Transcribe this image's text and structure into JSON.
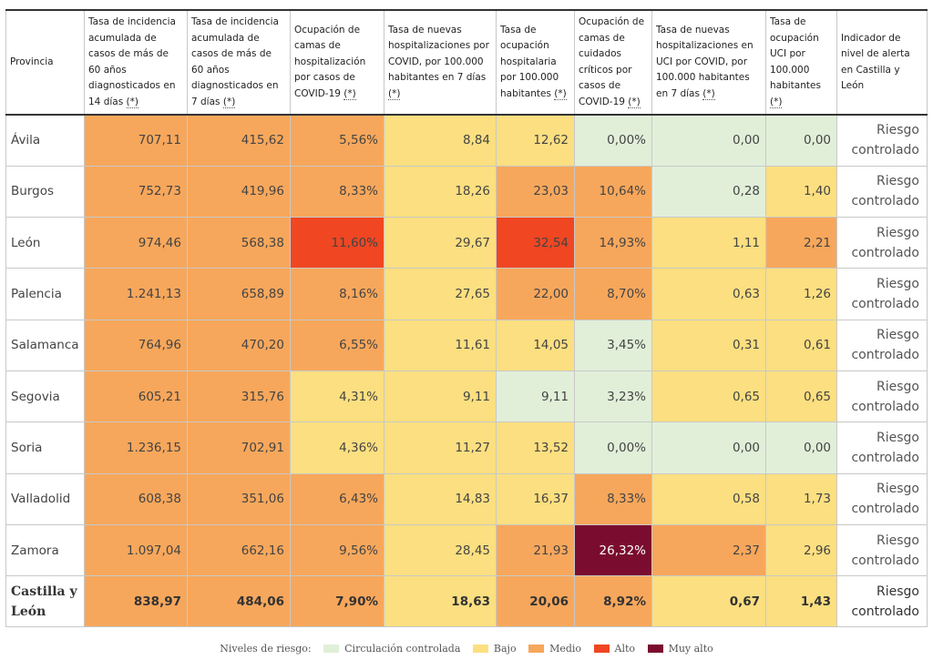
{
  "colors": {
    "green": "#e1efd9",
    "yellow": "#fcdf80",
    "orange": "#f7a75b",
    "red": "#f04622",
    "maroon": "#7a0d2f"
  },
  "headers": [
    {
      "text": "Provincia",
      "ast": ""
    },
    {
      "text": "Tasa de incidencia acumulada de casos de más de 60 años diagnosticados en 14 días ",
      "ast": "(*)"
    },
    {
      "text": "Tasa de incidencia acumulada de casos de más de 60 años diagnosticados en 7 días ",
      "ast": "(*)"
    },
    {
      "text": "Ocupación de camas de hospitalización por casos de COVID-19 ",
      "ast": "(*)"
    },
    {
      "text": "Tasa de nuevas hospitalizaciones por COVID, por 100.000 habitantes en 7 días ",
      "ast": "(*)"
    },
    {
      "text": "Tasa de ocupación hospitalaria por 100.000 habitantes ",
      "ast": "(*)"
    },
    {
      "text": "Ocupación de camas de cuidados críticos por casos de COVID-19 ",
      "ast": "(*)"
    },
    {
      "text": "Tasa de nuevas hospitalizaciones en UCI por COVID, por 100.000 habitantes en 7 días ",
      "ast": "(*)"
    },
    {
      "text": "Tasa de ocupación UCI por 100.000 habitantes ",
      "ast": "(*)"
    },
    {
      "text": "Indicador de nivel de alerta en Castilla y León",
      "ast": ""
    }
  ],
  "rows": [
    {
      "province": "Ávila",
      "values": [
        "707,11",
        "415,62",
        "5,56%",
        "8,84",
        "12,62",
        "0,00%",
        "0,00",
        "0,00"
      ],
      "levels": [
        "orange",
        "orange",
        "orange",
        "yellow",
        "yellow",
        "green",
        "green",
        "green"
      ],
      "risk_line1": "Riesgo",
      "risk_line2": "controlado"
    },
    {
      "province": "Burgos",
      "values": [
        "752,73",
        "419,96",
        "8,33%",
        "18,26",
        "23,03",
        "10,64%",
        "0,28",
        "1,40"
      ],
      "levels": [
        "orange",
        "orange",
        "orange",
        "yellow",
        "orange",
        "orange",
        "green",
        "yellow"
      ],
      "risk_line1": "Riesgo",
      "risk_line2": "controlado"
    },
    {
      "province": "León",
      "values": [
        "974,46",
        "568,38",
        "11,60%",
        "29,67",
        "32,54",
        "14,93%",
        "1,11",
        "2,21"
      ],
      "levels": [
        "orange",
        "orange",
        "red",
        "yellow",
        "red",
        "orange",
        "yellow",
        "orange"
      ],
      "risk_line1": "Riesgo",
      "risk_line2": "controlado"
    },
    {
      "province": "Palencia",
      "values": [
        "1.241,13",
        "658,89",
        "8,16%",
        "27,65",
        "22,00",
        "8,70%",
        "0,63",
        "1,26"
      ],
      "levels": [
        "orange",
        "orange",
        "orange",
        "yellow",
        "orange",
        "orange",
        "yellow",
        "yellow"
      ],
      "risk_line1": "Riesgo",
      "risk_line2": "controlado"
    },
    {
      "province": "Salamanca",
      "values": [
        "764,96",
        "470,20",
        "6,55%",
        "11,61",
        "14,05",
        "3,45%",
        "0,31",
        "0,61"
      ],
      "levels": [
        "orange",
        "orange",
        "orange",
        "yellow",
        "yellow",
        "green",
        "yellow",
        "yellow"
      ],
      "risk_line1": "Riesgo",
      "risk_line2": "controlado"
    },
    {
      "province": "Segovia",
      "values": [
        "605,21",
        "315,76",
        "4,31%",
        "9,11",
        "9,11",
        "3,23%",
        "0,65",
        "0,65"
      ],
      "levels": [
        "orange",
        "orange",
        "yellow",
        "yellow",
        "green",
        "green",
        "yellow",
        "yellow"
      ],
      "risk_line1": "Riesgo",
      "risk_line2": "controlado"
    },
    {
      "province": "Soria",
      "values": [
        "1.236,15",
        "702,91",
        "4,36%",
        "11,27",
        "13,52",
        "0,00%",
        "0,00",
        "0,00"
      ],
      "levels": [
        "orange",
        "orange",
        "yellow",
        "yellow",
        "yellow",
        "green",
        "green",
        "green"
      ],
      "risk_line1": "Riesgo",
      "risk_line2": "controlado"
    },
    {
      "province": "Valladolid",
      "values": [
        "608,38",
        "351,06",
        "6,43%",
        "14,83",
        "16,37",
        "8,33%",
        "0,58",
        "1,73"
      ],
      "levels": [
        "orange",
        "orange",
        "orange",
        "yellow",
        "yellow",
        "orange",
        "yellow",
        "yellow"
      ],
      "risk_line1": "Riesgo",
      "risk_line2": "controlado"
    },
    {
      "province": "Zamora",
      "values": [
        "1.097,04",
        "662,16",
        "9,56%",
        "28,45",
        "21,93",
        "26,32%",
        "2,37",
        "2,96"
      ],
      "levels": [
        "orange",
        "orange",
        "orange",
        "yellow",
        "orange",
        "maroon",
        "orange",
        "yellow"
      ],
      "risk_line1": "Riesgo",
      "risk_line2": "controlado"
    }
  ],
  "total": {
    "province_line1": "Castilla y",
    "province_line2": "León",
    "values": [
      "838,97",
      "484,06",
      "7,90%",
      "18,63",
      "20,06",
      "8,92%",
      "0,67",
      "1,43"
    ],
    "levels": [
      "orange",
      "orange",
      "orange",
      "yellow",
      "orange",
      "orange",
      "yellow",
      "yellow"
    ],
    "risk_line1": "Riesgo",
    "risk_line2": "controlado"
  },
  "legend": {
    "title": "Niveles de riesgo:",
    "items": [
      {
        "label": "Circulación controlada",
        "color": "#e1efd9"
      },
      {
        "label": "Bajo",
        "color": "#fcdf80"
      },
      {
        "label": "Medio",
        "color": "#f7a75b"
      },
      {
        "label": "Alto",
        "color": "#f04622"
      },
      {
        "label": "Muy alto",
        "color": "#7a0d2f"
      }
    ]
  }
}
